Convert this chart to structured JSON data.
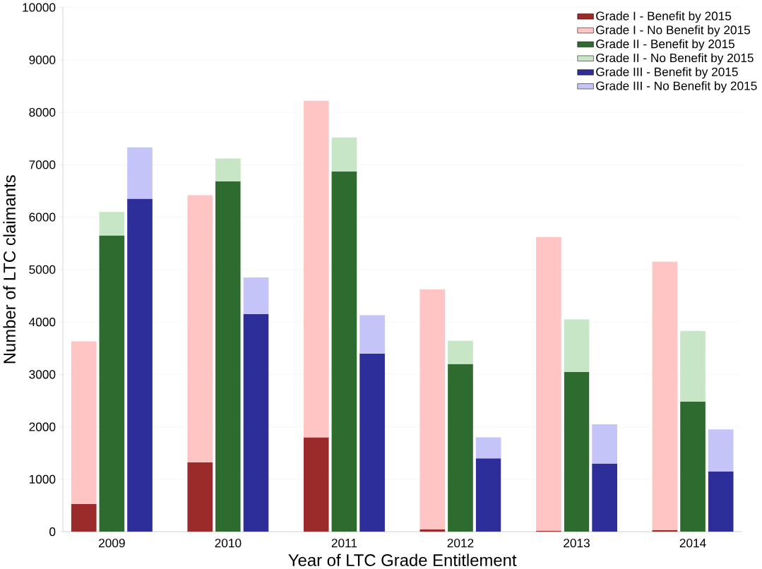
{
  "chart_data": {
    "type": "bar",
    "stacked": true,
    "xlabel": "Year of LTC Grade Entitlement",
    "ylabel": "Number of LTC claimants",
    "categories": [
      null,
      "2009",
      null,
      null,
      "2010",
      null,
      null,
      "2011",
      null,
      null,
      "2012",
      null,
      null,
      "2013",
      null,
      null,
      "2014",
      null
    ],
    "series": [
      {
        "name": "Grade I - Benefit by 2015",
        "color": "#9b2a2a",
        "values": [
          530,
          null,
          null,
          1320,
          null,
          null,
          1800,
          null,
          null,
          50,
          null,
          null,
          20,
          null,
          null,
          30,
          null,
          null
        ]
      },
      {
        "name": "Grade I - No Benefit by 2015",
        "color": "#ffc4c4",
        "values": [
          3100,
          null,
          null,
          5100,
          null,
          null,
          6420,
          null,
          null,
          4570,
          null,
          null,
          5600,
          null,
          null,
          5120,
          null,
          null
        ]
      },
      {
        "name": "Grade II - Benefit by 2015",
        "color": "#2e6b2e",
        "values": [
          null,
          5650,
          null,
          null,
          6680,
          null,
          null,
          6870,
          null,
          null,
          3200,
          null,
          null,
          3050,
          null,
          null,
          2480,
          null
        ]
      },
      {
        "name": "Grade II - No Benefit by 2015",
        "color": "#c6e6c6",
        "values": [
          null,
          450,
          null,
          null,
          440,
          null,
          null,
          650,
          null,
          null,
          440,
          null,
          null,
          1000,
          null,
          null,
          1350,
          null
        ]
      },
      {
        "name": "Grade III - Benefit by 2015",
        "color": "#2e2e9b",
        "values": [
          null,
          null,
          6350,
          null,
          null,
          4150,
          null,
          null,
          3400,
          null,
          null,
          1400,
          null,
          null,
          1300,
          null,
          null,
          1150
        ]
      },
      {
        "name": "Grade III - No Benefit by 2015",
        "color": "#c4c4f8",
        "values": [
          null,
          null,
          980,
          null,
          null,
          700,
          null,
          null,
          730,
          null,
          null,
          400,
          null,
          null,
          750,
          null,
          null,
          800
        ]
      }
    ],
    "ylim": [
      0,
      10000
    ],
    "yticks": [
      0,
      1000,
      2000,
      3000,
      4000,
      5000,
      6000,
      7000,
      8000,
      9000,
      10000
    ],
    "grid": "y",
    "legend": "top right"
  }
}
